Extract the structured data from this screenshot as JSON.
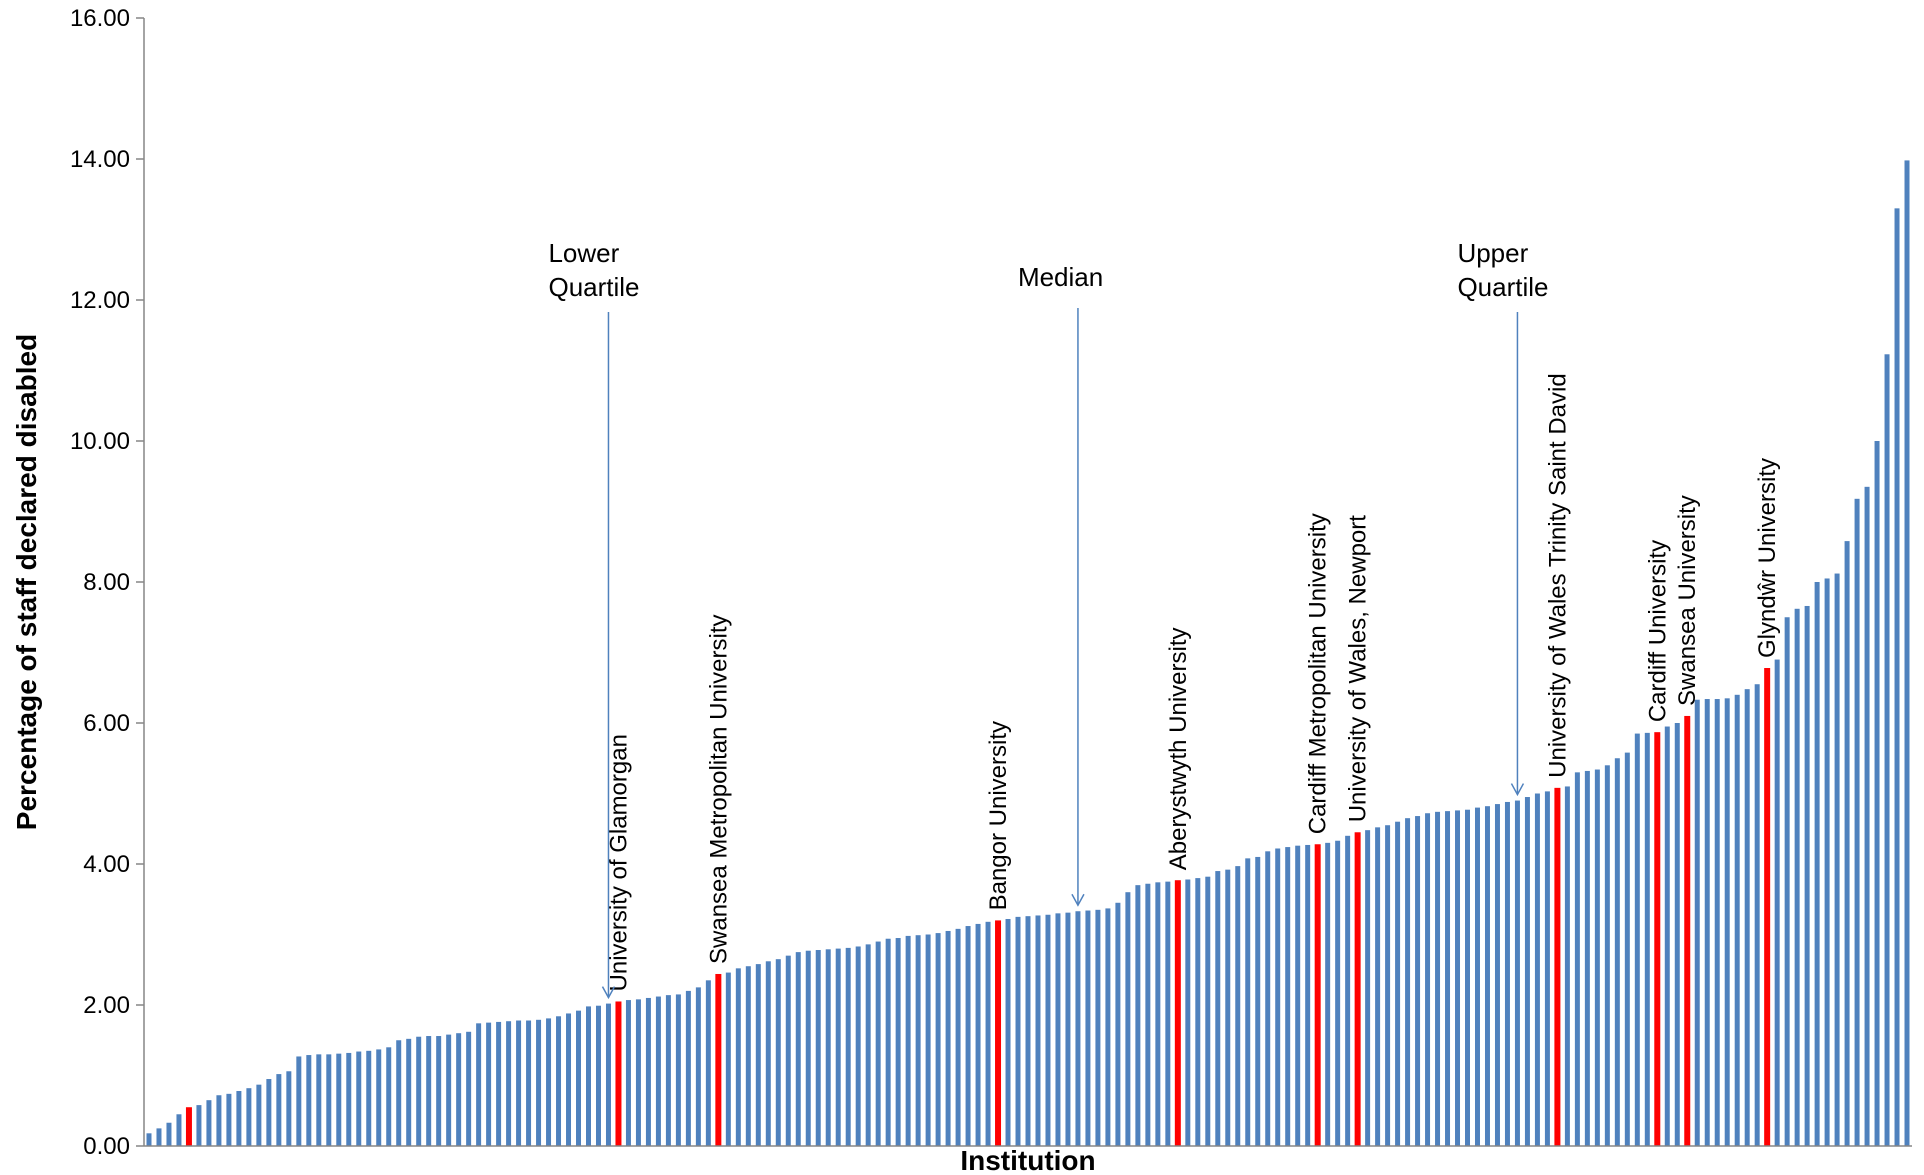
{
  "chart_data": {
    "type": "bar",
    "title": "",
    "xlabel": "Institution",
    "ylabel": "Percentage of staff declared disabled",
    "ylim": [
      0,
      16
    ],
    "y_ticks": [
      "0.00",
      "2.00",
      "4.00",
      "6.00",
      "8.00",
      "10.00",
      "12.00",
      "14.00",
      "16.00"
    ],
    "grid": false,
    "colors": {
      "bar": "#4f81bd",
      "highlight": "#ff0000",
      "axis": "#868686",
      "arrow": "#4f81bd"
    },
    "values": [
      0.18,
      0.25,
      0.33,
      0.45,
      0.55,
      0.58,
      0.65,
      0.72,
      0.74,
      0.78,
      0.82,
      0.87,
      0.95,
      1.02,
      1.06,
      1.27,
      1.29,
      1.3,
      1.3,
      1.31,
      1.32,
      1.34,
      1.35,
      1.37,
      1.4,
      1.5,
      1.52,
      1.55,
      1.56,
      1.56,
      1.58,
      1.6,
      1.62,
      1.74,
      1.75,
      1.76,
      1.77,
      1.78,
      1.78,
      1.79,
      1.81,
      1.84,
      1.88,
      1.92,
      1.98,
      1.99,
      2.02,
      2.05,
      2.07,
      2.08,
      2.1,
      2.12,
      2.14,
      2.15,
      2.2,
      2.25,
      2.35,
      2.44,
      2.46,
      2.52,
      2.55,
      2.58,
      2.62,
      2.65,
      2.7,
      2.75,
      2.77,
      2.78,
      2.79,
      2.8,
      2.81,
      2.83,
      2.86,
      2.9,
      2.94,
      2.95,
      2.98,
      2.99,
      3.0,
      3.02,
      3.05,
      3.08,
      3.12,
      3.15,
      3.18,
      3.2,
      3.22,
      3.25,
      3.26,
      3.27,
      3.28,
      3.3,
      3.31,
      3.33,
      3.34,
      3.35,
      3.37,
      3.45,
      3.6,
      3.7,
      3.72,
      3.74,
      3.75,
      3.77,
      3.78,
      3.8,
      3.82,
      3.9,
      3.92,
      3.97,
      4.08,
      4.1,
      4.18,
      4.22,
      4.24,
      4.26,
      4.27,
      4.28,
      4.3,
      4.33,
      4.4,
      4.45,
      4.48,
      4.52,
      4.55,
      4.6,
      4.65,
      4.68,
      4.72,
      4.74,
      4.75,
      4.76,
      4.77,
      4.8,
      4.82,
      4.85,
      4.88,
      4.9,
      4.95,
      5.0,
      5.03,
      5.08,
      5.1,
      5.3,
      5.32,
      5.34,
      5.4,
      5.5,
      5.58,
      5.85,
      5.86,
      5.87,
      5.95,
      6.0,
      6.1,
      6.33,
      6.34,
      6.34,
      6.35,
      6.4,
      6.48,
      6.55,
      6.78,
      6.9,
      7.5,
      7.62,
      7.66,
      8.0,
      8.05,
      8.12,
      8.58,
      9.18,
      9.35,
      10.0,
      11.23,
      13.3,
      13.98
    ],
    "highlighted": [
      {
        "index": 4,
        "label": ""
      },
      {
        "index": 47,
        "label": "University of Glamorgan"
      },
      {
        "index": 57,
        "label": "Swansea Metropolitan University"
      },
      {
        "index": 85,
        "label": "Bangor University"
      },
      {
        "index": 103,
        "label": "Aberystwyth University"
      },
      {
        "index": 117,
        "label": "Cardiff Metropolitan University"
      },
      {
        "index": 121,
        "label": "University of Wales, Newport"
      },
      {
        "index": 141,
        "label": "University of Wales Trinity Saint David"
      },
      {
        "index": 151,
        "label": "Cardiff University"
      },
      {
        "index": 154,
        "label": "Swansea University"
      },
      {
        "index": 162,
        "label": "Glyndŵr University"
      }
    ],
    "annotations": [
      {
        "lines": [
          "Lower",
          "Quartile"
        ],
        "index": 46
      },
      {
        "lines": [
          "Median"
        ],
        "index": 93
      },
      {
        "lines": [
          "Upper",
          "Quartile"
        ],
        "index": 137
      }
    ]
  }
}
